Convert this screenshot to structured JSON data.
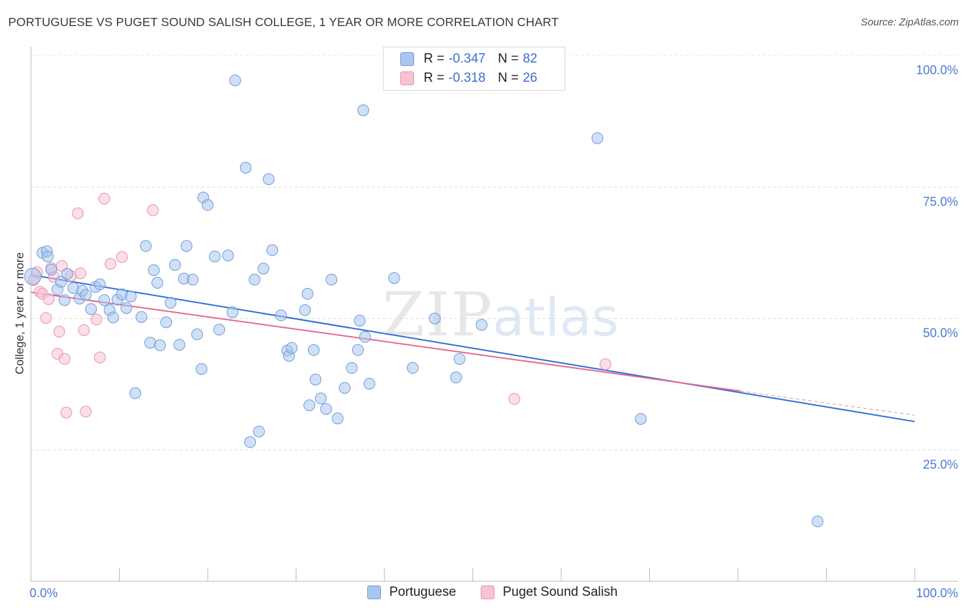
{
  "header": {
    "title": "PORTUGUESE VS PUGET SOUND SALISH COLLEGE, 1 YEAR OR MORE CORRELATION CHART",
    "source": "Source: ZipAtlas.com"
  },
  "watermark": {
    "zip": "ZIP",
    "atlas": "atlas"
  },
  "legend": {
    "r_label": "R =",
    "n_label": "N =",
    "rows": [
      {
        "r": "-0.347",
        "n": "82",
        "color": "#a9c6ef",
        "border": "#6f9ad8"
      },
      {
        "r": "-0.318",
        "n": "26",
        "color": "#f7c3d3",
        "border": "#e892ad"
      }
    ]
  },
  "bottom_legend": [
    {
      "label": "Portuguese",
      "color": "#a9c6ef",
      "border": "#6f9ad8"
    },
    {
      "label": "Puget Sound Salish",
      "color": "#f7c3d3",
      "border": "#e892ad"
    }
  ],
  "chart_data": {
    "type": "scatter",
    "title": "PORTUGUESE VS PUGET SOUND SALISH COLLEGE, 1 YEAR OR MORE CORRELATION CHART",
    "ylabel": "College, 1 year or more",
    "xlabel": "",
    "xlim": [
      0,
      100
    ],
    "ylim": [
      0,
      100
    ],
    "y_ticks": [
      {
        "value": 25,
        "label": "25.0%"
      },
      {
        "value": 50,
        "label": "50.0%"
      },
      {
        "value": 75,
        "label": "75.0%"
      },
      {
        "value": 100,
        "label": "100.0%"
      }
    ],
    "x_tick_labels": [
      {
        "value": 0,
        "label": "0.0%"
      },
      {
        "value": 100,
        "label": "100.0%"
      }
    ],
    "grid": true,
    "legend_position": "top-center",
    "series": [
      {
        "name": "Portuguese",
        "color": "#a9c6ef",
        "stroke": "#6f9ad8",
        "trend": {
          "x0": 0,
          "y0": 58.3,
          "x1": 100,
          "y1": 30.4,
          "color": "#2f6fd6"
        },
        "points": [
          [
            0.2,
            58.0
          ],
          [
            1.3,
            62.5
          ],
          [
            1.8,
            62.8
          ],
          [
            1.9,
            61.8
          ],
          [
            2.3,
            59.3
          ],
          [
            3.0,
            55.5
          ],
          [
            3.4,
            57.0
          ],
          [
            3.8,
            53.5
          ],
          [
            4.1,
            58.5
          ],
          [
            4.8,
            55.8
          ],
          [
            5.5,
            53.8
          ],
          [
            5.8,
            55.3
          ],
          [
            6.2,
            54.5
          ],
          [
            6.8,
            51.8
          ],
          [
            7.3,
            56.0
          ],
          [
            7.8,
            56.5
          ],
          [
            8.3,
            53.5
          ],
          [
            8.9,
            51.6
          ],
          [
            9.3,
            50.2
          ],
          [
            9.8,
            53.6
          ],
          [
            10.3,
            54.6
          ],
          [
            10.8,
            52.0
          ],
          [
            11.3,
            54.2
          ],
          [
            11.8,
            35.8
          ],
          [
            12.5,
            50.3
          ],
          [
            13.0,
            63.8
          ],
          [
            13.5,
            45.4
          ],
          [
            13.9,
            59.2
          ],
          [
            14.3,
            56.8
          ],
          [
            14.6,
            44.9
          ],
          [
            15.3,
            49.3
          ],
          [
            15.8,
            53.0
          ],
          [
            16.3,
            60.2
          ],
          [
            16.8,
            45.0
          ],
          [
            17.3,
            57.6
          ],
          [
            17.6,
            63.8
          ],
          [
            18.3,
            57.4
          ],
          [
            18.8,
            47.0
          ],
          [
            19.3,
            40.4
          ],
          [
            19.5,
            73.0
          ],
          [
            20.0,
            71.6
          ],
          [
            20.8,
            61.8
          ],
          [
            21.3,
            47.9
          ],
          [
            22.3,
            62.0
          ],
          [
            22.8,
            51.2
          ],
          [
            23.1,
            95.3
          ],
          [
            24.3,
            78.7
          ],
          [
            25.3,
            57.4
          ],
          [
            25.8,
            28.5
          ],
          [
            24.8,
            26.5
          ],
          [
            26.3,
            59.5
          ],
          [
            26.9,
            76.5
          ],
          [
            27.3,
            63.0
          ],
          [
            28.3,
            50.6
          ],
          [
            29.0,
            43.9
          ],
          [
            29.2,
            42.9
          ],
          [
            29.5,
            44.4
          ],
          [
            31.0,
            51.6
          ],
          [
            31.3,
            54.7
          ],
          [
            32.0,
            44.0
          ],
          [
            32.2,
            38.4
          ],
          [
            32.8,
            34.8
          ],
          [
            31.5,
            33.5
          ],
          [
            33.4,
            32.8
          ],
          [
            34.0,
            57.4
          ],
          [
            34.7,
            31.0
          ],
          [
            35.5,
            36.8
          ],
          [
            36.3,
            40.6
          ],
          [
            37.0,
            44.0
          ],
          [
            37.2,
            49.6
          ],
          [
            37.8,
            46.5
          ],
          [
            38.3,
            37.6
          ],
          [
            37.6,
            89.6
          ],
          [
            41.1,
            57.7
          ],
          [
            43.2,
            40.6
          ],
          [
            45.7,
            50.0
          ],
          [
            48.1,
            38.8
          ],
          [
            48.5,
            42.3
          ],
          [
            51.0,
            48.8
          ],
          [
            64.1,
            84.3
          ],
          [
            69.0,
            30.9
          ],
          [
            89.0,
            11.4
          ]
        ]
      },
      {
        "name": "Puget Sound Salish",
        "color": "#f7c3d3",
        "stroke": "#e892ad",
        "trend": {
          "x0": 0,
          "y0": 55.0,
          "x1": 80.3,
          "y1": 36.2,
          "color": "#e46a95"
        },
        "trend_dashed": {
          "x0": 80.3,
          "y0": 36.2,
          "x1": 100,
          "y1": 31.6,
          "color": "#e9a0b9"
        },
        "points": [
          [
            0.3,
            57.3
          ],
          [
            0.7,
            58.8
          ],
          [
            1.0,
            55.1
          ],
          [
            1.3,
            54.7
          ],
          [
            1.7,
            50.1
          ],
          [
            2.0,
            53.7
          ],
          [
            2.3,
            59.6
          ],
          [
            2.6,
            57.9
          ],
          [
            3.0,
            43.3
          ],
          [
            3.2,
            47.5
          ],
          [
            3.5,
            60.0
          ],
          [
            3.8,
            42.3
          ],
          [
            4.0,
            32.1
          ],
          [
            4.5,
            58.1
          ],
          [
            5.3,
            70.0
          ],
          [
            5.6,
            58.6
          ],
          [
            6.0,
            47.8
          ],
          [
            6.2,
            32.3
          ],
          [
            7.4,
            49.8
          ],
          [
            7.8,
            42.6
          ],
          [
            8.3,
            72.8
          ],
          [
            9.0,
            60.4
          ],
          [
            10.3,
            61.7
          ],
          [
            13.8,
            70.6
          ],
          [
            54.7,
            34.7
          ],
          [
            65.0,
            41.3
          ]
        ]
      }
    ]
  }
}
